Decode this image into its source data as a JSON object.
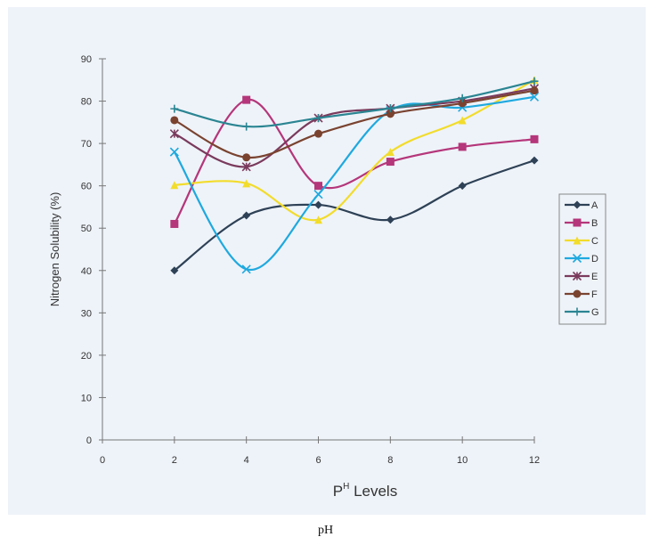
{
  "chart_data": {
    "type": "line",
    "title": "",
    "xlabel": "P",
    "xlabel_sup": "H",
    "xlabel_suffix": " Levels",
    "ylabel": "Nitrogen Solubility (%)",
    "x": [
      2,
      4,
      6,
      8,
      10,
      12
    ],
    "xticks": [
      "0",
      "2",
      "4",
      "6",
      "8",
      "10",
      "12"
    ],
    "xlim": [
      0,
      12
    ],
    "yticks": [
      "0",
      "10",
      "20",
      "30",
      "40",
      "50",
      "60",
      "70",
      "80",
      "90"
    ],
    "ylim": [
      0,
      90
    ],
    "grid": false,
    "legend_placement": "right",
    "series": [
      {
        "name": "A",
        "color": "#2e4156",
        "marker": "diamond",
        "values": [
          40,
          53,
          55.5,
          52,
          60,
          66
        ]
      },
      {
        "name": "B",
        "color": "#b5367a",
        "marker": "square",
        "values": [
          51,
          80.3,
          60,
          65.7,
          69.2,
          71
        ]
      },
      {
        "name": "C",
        "color": "#f2dc2c",
        "marker": "triangle",
        "values": [
          60.2,
          60.6,
          52,
          68,
          75.5,
          85
        ]
      },
      {
        "name": "D",
        "color": "#1fa9df",
        "marker": "x",
        "values": [
          68,
          40.3,
          58,
          77.8,
          78.5,
          81
        ]
      },
      {
        "name": "E",
        "color": "#7a3a5c",
        "marker": "star",
        "values": [
          72.3,
          64.5,
          76,
          78.3,
          80,
          83
        ]
      },
      {
        "name": "F",
        "color": "#7a4330",
        "marker": "circle",
        "values": [
          75.5,
          66.7,
          72.3,
          77,
          79.5,
          82.5
        ]
      },
      {
        "name": "G",
        "color": "#2a8592",
        "marker": "plus",
        "values": [
          78.2,
          74,
          76,
          78.3,
          80.7,
          84.7
        ]
      }
    ]
  },
  "caption": "pH"
}
